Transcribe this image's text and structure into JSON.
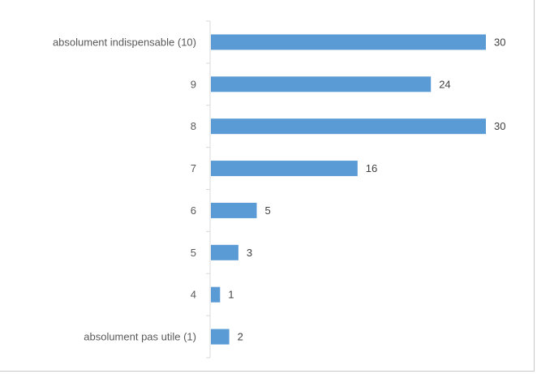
{
  "chart_data": {
    "type": "bar",
    "orientation": "horizontal",
    "title": "",
    "categories": [
      "absolument indispensable (10)",
      "9",
      "8",
      "7",
      "6",
      "5",
      "4",
      "absolument pas utile (1)"
    ],
    "values": [
      30,
      24,
      30,
      16,
      5,
      3,
      1,
      2
    ],
    "xlim": [
      0,
      30
    ],
    "grid": false,
    "legend": "none",
    "data_labels": true,
    "colors": {
      "bar": "#5B9BD5",
      "axis": "#d9d9d9",
      "label": "#595959",
      "value_label": "#404040"
    }
  }
}
